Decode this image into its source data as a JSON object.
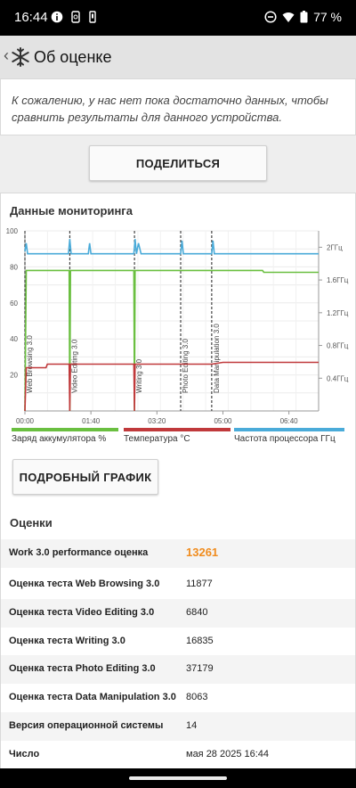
{
  "status": {
    "time": "16:44",
    "battery": "77 %"
  },
  "appbar": {
    "back": "‹",
    "title": "Об оценке"
  },
  "message": "К сожалению, у нас нет пока достаточно данных, чтобы сравнить результаты для данного устройства.",
  "share_label": "ПОДЕЛИТЬСЯ",
  "monitoring": {
    "heading": "Данные мониторинга",
    "detail_label": "ПОДРОБНЫЙ ГРАФИК",
    "legend": [
      {
        "label": "Заряд аккумулятора %",
        "color": "#6abf40"
      },
      {
        "label": "Температура °C",
        "color": "#c0393b"
      },
      {
        "label": "Частота процессора ГГц",
        "color": "#4aabd9"
      }
    ]
  },
  "chart_data": {
    "type": "line",
    "x_ticks": [
      "00:00",
      "01:40",
      "03:20",
      "05:00",
      "06:40"
    ],
    "y_left_ticks": [
      "20",
      "40",
      "60",
      "80",
      "100"
    ],
    "y_right_ticks": [
      "0.4ГГц",
      "0.8ГГц",
      "1.2ГГц",
      "1.6ГГц",
      "2ГГц"
    ],
    "ylim_left": [
      0,
      100
    ],
    "ylim_right": [
      0,
      2.2
    ],
    "markers": [
      {
        "label": "Web Browsing 3.0",
        "t": 0
      },
      {
        "label": "Video Editing 3.0",
        "t": 68
      },
      {
        "label": "Writing 3.0",
        "t": 166
      },
      {
        "label": "Photo Editing 3.0",
        "t": 236
      },
      {
        "label": "Data Manipulation 3.0",
        "t": 283
      }
    ],
    "series": [
      {
        "name": "Заряд аккумулятора %",
        "color": "#6abf40",
        "axis": "left",
        "x": [
          0,
          2,
          3,
          67,
          68,
          69,
          165,
          166,
          167,
          360,
          362,
          445
        ],
        "y": [
          0,
          78,
          78,
          78,
          0,
          78,
          78,
          0,
          78,
          78,
          77,
          77
        ]
      },
      {
        "name": "Температура °C",
        "color": "#c0393b",
        "axis": "left",
        "x": [
          0,
          2,
          3,
          32,
          34,
          67,
          68,
          69,
          165,
          166,
          167,
          283,
          300,
          445
        ],
        "y": [
          0,
          24,
          24,
          24,
          26,
          26,
          0,
          26,
          26,
          0,
          26,
          26,
          27,
          27
        ]
      },
      {
        "name": "Частота процессора ГГц",
        "color": "#4aabd9",
        "axis": "right",
        "x": [
          0,
          2,
          4,
          6,
          8,
          66,
          68,
          70,
          96,
          98,
          100,
          165,
          167,
          169,
          172,
          176,
          180,
          236,
          238,
          240,
          283,
          285,
          287,
          445
        ],
        "y": [
          1.95,
          2.05,
          1.92,
          1.92,
          1.92,
          1.92,
          2.1,
          1.92,
          1.92,
          2.05,
          1.92,
          1.92,
          2.1,
          1.92,
          2.05,
          1.92,
          1.92,
          1.92,
          2.08,
          1.92,
          1.92,
          2.08,
          1.92,
          1.92
        ]
      }
    ]
  },
  "scores": {
    "title": "Оценки",
    "rows": [
      {
        "label": "Work 3.0 performance оценка",
        "value": "13261"
      },
      {
        "label": "Оценка теста Web Browsing 3.0",
        "value": "11877"
      },
      {
        "label": "Оценка теста Video Editing 3.0",
        "value": "6840"
      },
      {
        "label": "Оценка теста Writing 3.0",
        "value": "16835"
      },
      {
        "label": "Оценка теста Photo Editing 3.0",
        "value": "37179"
      },
      {
        "label": "Оценка теста Data Manipulation 3.0",
        "value": "8063"
      },
      {
        "label": "Версия операционной системы",
        "value": "14"
      },
      {
        "label": "Число",
        "value": "мая 28 2025 16:44"
      }
    ]
  }
}
